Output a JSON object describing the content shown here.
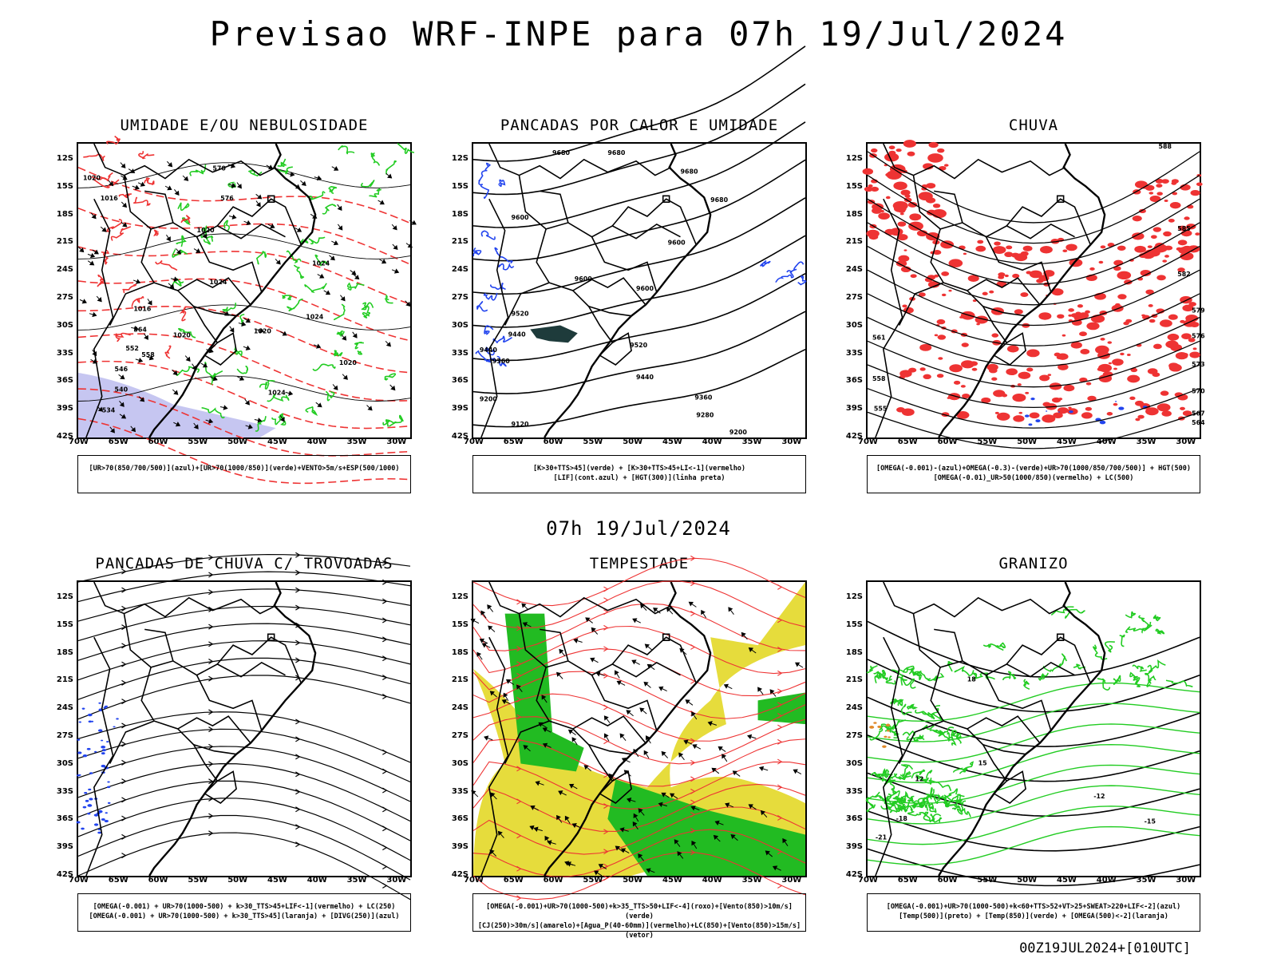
{
  "title": "Previsao WRF-INPE  para 07h 19/Jul/2024",
  "subtitle": "07h 19/Jul/2024",
  "footer": "00Z19JUL2024+[010UTC]",
  "axes": {
    "lat_ticks": [
      "12S",
      "15S",
      "18S",
      "21S",
      "24S",
      "27S",
      "30S",
      "33S",
      "36S",
      "39S",
      "42S"
    ],
    "lon_ticks": [
      "70W",
      "65W",
      "60W",
      "55W",
      "50W",
      "45W",
      "40W",
      "35W",
      "30W"
    ]
  },
  "panels": [
    {
      "id": "umidade",
      "title": "UMIDADE E/OU NEBULOSIDADE",
      "legend": [
        "[UR>70(850/700/500)](azul)+[UR>70(1000/850)](verde)+VENTO>5m/s+ESP(500/1000)"
      ],
      "labels": [
        "1020",
        "1016",
        "1020",
        "1024",
        "1024",
        "1020",
        "1016",
        "1020",
        "1024",
        "1024",
        "1020",
        "570",
        "576",
        "564",
        "558",
        "552",
        "546",
        "540",
        "534"
      ]
    },
    {
      "id": "pancadas_calor",
      "title": "PANCADAS POR CALOR E UMIDADE",
      "legend": [
        "[K>30+TTS>45](verde) + [K>30+TTS>45+LI<-1](vermelho)",
        "[LIF](cont.azul) + [HGT(300)](linha preta)"
      ],
      "labels": [
        "9680",
        "9680",
        "9680",
        "9680",
        "9600",
        "9600",
        "9600",
        "9600",
        "9520",
        "9520",
        "9440",
        "9440",
        "9440",
        "9360",
        "9360",
        "9280",
        "9200",
        "9200",
        "9120"
      ]
    },
    {
      "id": "chuva",
      "title": "CHUVA",
      "legend": [
        "[OMEGA(-0.001)-(azul)+OMEGA(-0.3)-(verde)+UR>70(1000/850/700/500)] + HGT(500)",
        "[OMEGA(-0.01)_UR>50(1000/850)(vermelho) + LC(500)"
      ],
      "labels": [
        "588",
        "585",
        "582",
        "579",
        "576",
        "573",
        "570",
        "567",
        "564",
        "561",
        "558",
        "555"
      ]
    },
    {
      "id": "pancadas_trovoadas",
      "title": "PANCADAS DE CHUVA C/ TROVOADAS",
      "legend": [
        "[OMEGA(-0.001) + UR>70(1000-500) + k>30_TTS>45+LIF<-1](vermelho) + LC(250)",
        "[OMEGA(-0.001) + UR>70(1000-500) + k>30_TTS>45](laranja) + [DIVG(250)](azul)"
      ],
      "labels": []
    },
    {
      "id": "tempestade",
      "title": "TEMPESTADE",
      "legend": [
        "[OMEGA(-0.001)+UR>70(1000-500)+k>35_TTS>50+LIF<-4](roxo)+[Vento(850)>10m/s](verde)",
        "[CJ(250)>30m/s](amarelo)+[Agua_P(40-60mm)](vermelho)+LC(850)+[Vento(850)>15m/s](vetor)"
      ],
      "labels": []
    },
    {
      "id": "granizo",
      "title": "GRANIZO",
      "legend": [
        "[OMEGA(-0.001)+UR>70(1000-500)+k<60+TTS>52+VT>25+SWEAT>220+LIF<-2](azul)",
        "[Temp(500)](preto) + [Temp(850)](verde) + [OMEGA(500)<-2](laranja)"
      ],
      "labels": [
        "-21",
        "-18",
        "-15",
        "-12",
        "12",
        "15",
        "18"
      ]
    }
  ],
  "colors": {
    "green": "#22cc22",
    "red": "#ee3333",
    "blue": "#2244ee",
    "yellow": "#e6dc3c",
    "lavender": "#b8b8ee",
    "darkteal": "#1e3b3b"
  }
}
